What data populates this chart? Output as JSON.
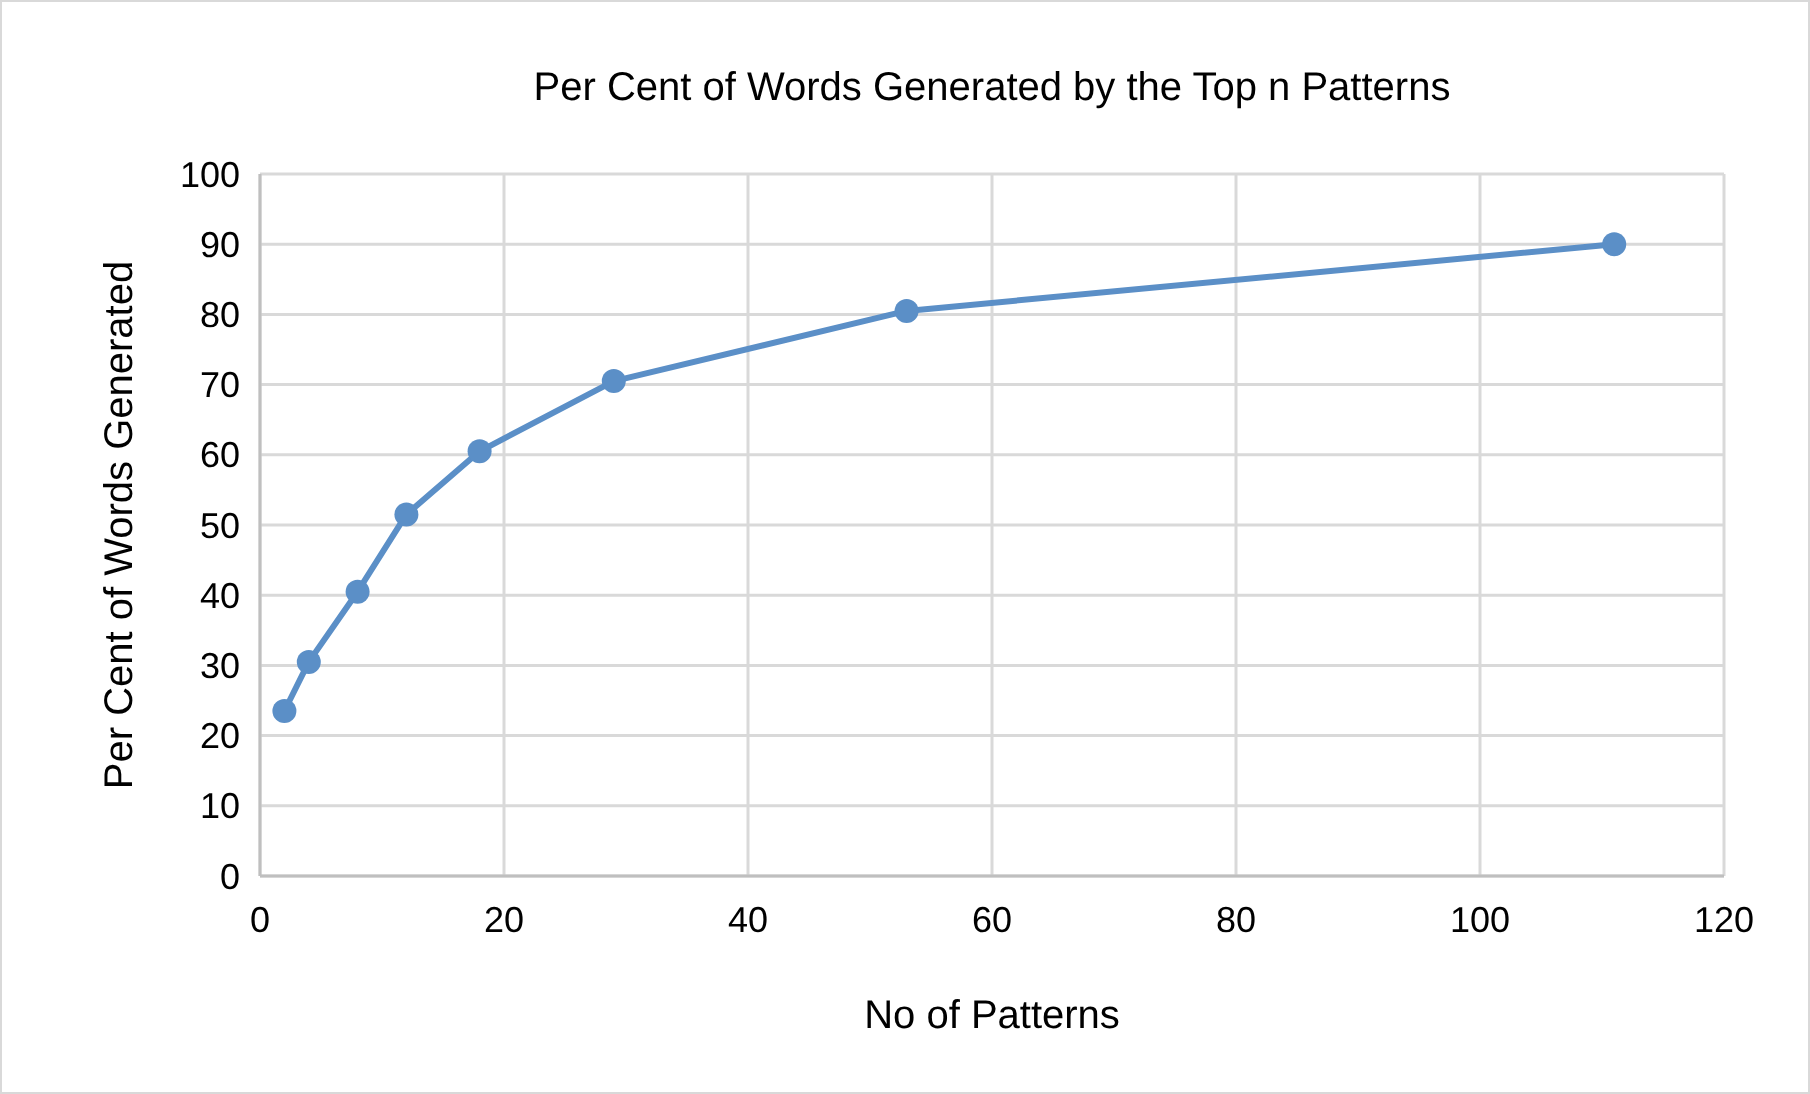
{
  "chart_data": {
    "type": "line",
    "title": "Per Cent of Words Generated by the Top n Patterns",
    "xlabel": "No of Patterns",
    "ylabel": "Per Cent of Words Generated",
    "x": [
      2,
      4,
      8,
      12,
      18,
      29,
      53,
      111
    ],
    "series": [
      {
        "color": "#5b8fc7",
        "values": [
          23.5,
          30.5,
          40.5,
          51.5,
          60.5,
          70.5,
          80.5,
          90
        ]
      }
    ],
    "xlim": [
      0,
      120
    ],
    "xticks": [
      0,
      20,
      40,
      60,
      80,
      100,
      120
    ],
    "ylim": [
      0,
      100
    ],
    "yticks": [
      0,
      10,
      20,
      30,
      40,
      50,
      60,
      70,
      80,
      90,
      100
    ],
    "grid": true,
    "marker": "circle",
    "line_style": "solid"
  }
}
